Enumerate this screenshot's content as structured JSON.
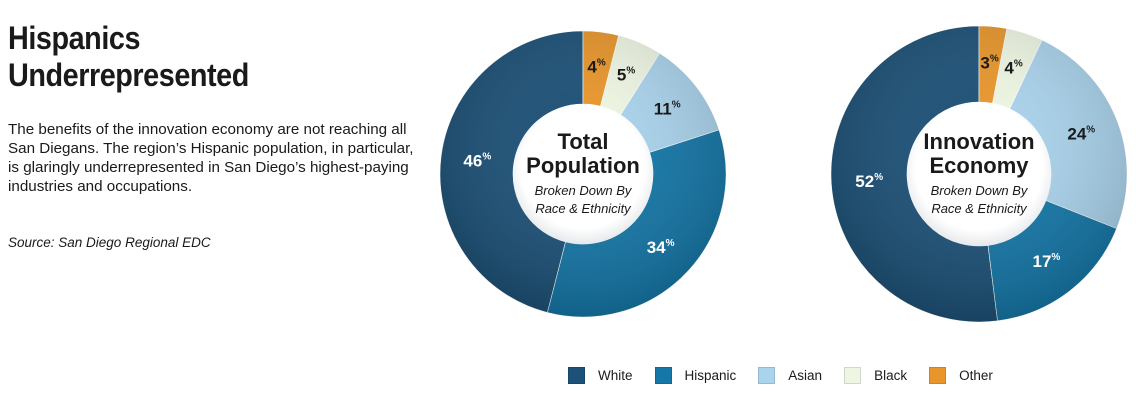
{
  "header": {
    "title_line1": "Hispanics",
    "title_line2": "Underrepresented",
    "description": "The benefits of the innovation economy are not reaching all San Diegans. The region’s Hispanic population, in particular, is glaringly underrepresented in San Diego’s highest-paying industries and occupations.",
    "source": "Source: San Diego Regional EDC"
  },
  "colors": {
    "White": "#1d5177",
    "Hispanic": "#1577a7",
    "Asian": "#aad3ec",
    "Black": "#eef6e3",
    "Other": "#e8962c"
  },
  "legend": [
    "White",
    "Hispanic",
    "Asian",
    "Black",
    "Other"
  ],
  "chart_data": [
    {
      "type": "pie",
      "variant": "donut",
      "title_line1": "Total",
      "title_line2": "Population",
      "subtitle_line1": "Broken Down By",
      "subtitle_line2": "Race & Ethnicity",
      "unit": "%",
      "slices": [
        {
          "label": "White",
          "value": 46
        },
        {
          "label": "Hispanic",
          "value": 34
        },
        {
          "label": "Asian",
          "value": 11
        },
        {
          "label": "Black",
          "value": 5
        },
        {
          "label": "Other",
          "value": 4
        }
      ]
    },
    {
      "type": "pie",
      "variant": "donut",
      "title_line1": "Innovation",
      "title_line2": "Economy",
      "subtitle_line1": "Broken Down By",
      "subtitle_line2": "Race & Ethnicity",
      "unit": "%",
      "slices": [
        {
          "label": "White",
          "value": 52
        },
        {
          "label": "Hispanic",
          "value": 17
        },
        {
          "label": "Asian",
          "value": 24
        },
        {
          "label": "Black",
          "value": 4
        },
        {
          "label": "Other",
          "value": 3
        }
      ]
    }
  ]
}
